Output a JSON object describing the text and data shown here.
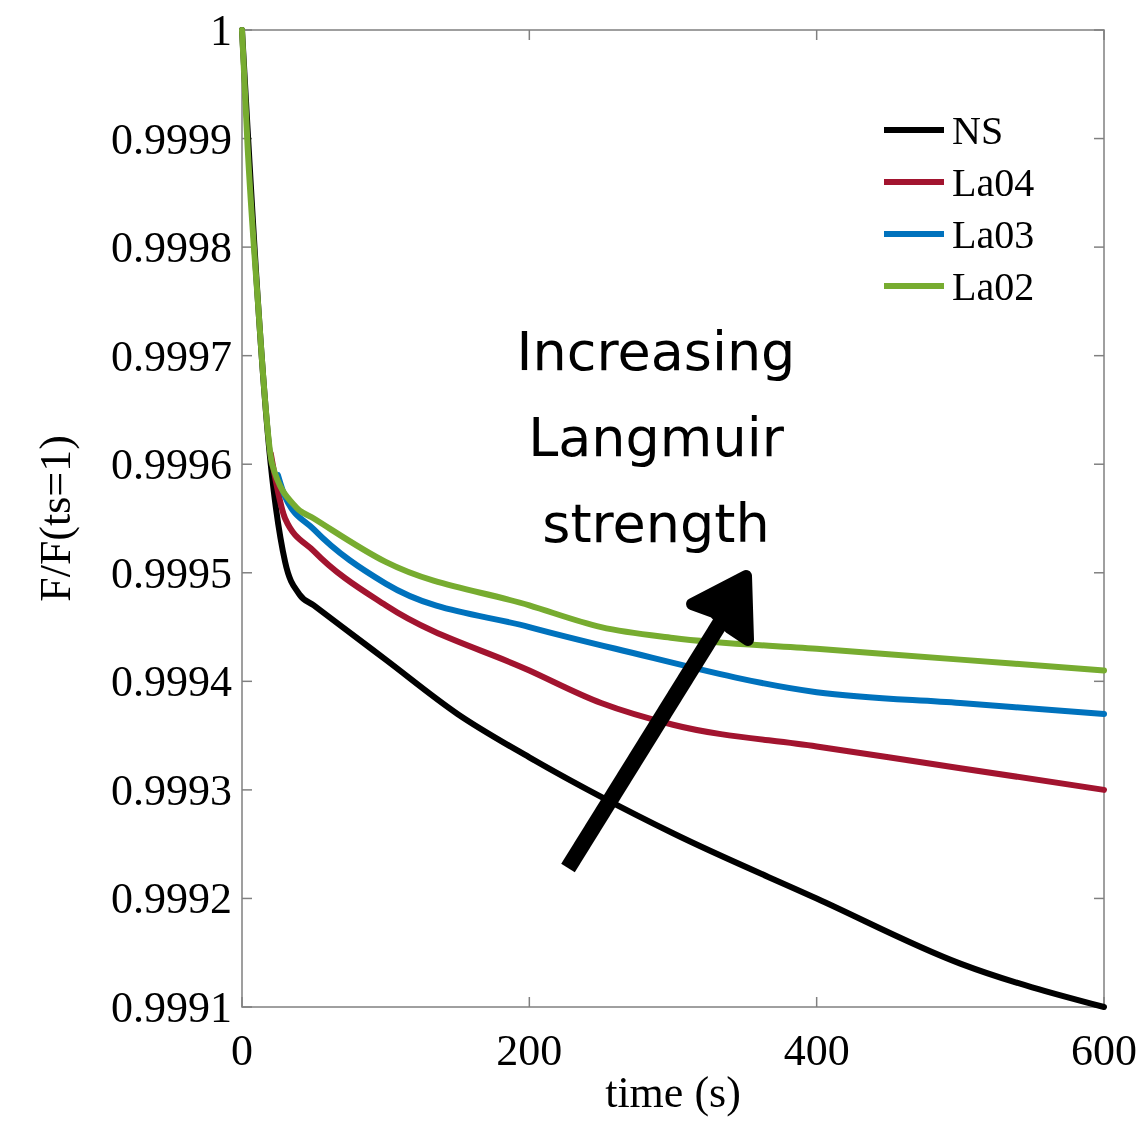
{
  "chart_data": {
    "type": "line",
    "xlabel": "time (s)",
    "ylabel": "F/F(ts=1)",
    "xlim": [
      0,
      600
    ],
    "ylim": [
      0.9991,
      1
    ],
    "xticks": [
      0,
      200,
      400,
      600
    ],
    "yticks": [
      0.9991,
      0.9992,
      0.9993,
      0.9994,
      0.9995,
      0.9996,
      0.9997,
      0.9998,
      0.9999,
      1
    ],
    "grid": false,
    "legend": "top right",
    "line_style": "solid",
    "marker": "none",
    "annotations": [
      "Increasing Langmuir strength"
    ],
    "series": [
      {
        "name": "NS",
        "color": "#000000",
        "x": [
          0,
          4,
          10,
          20,
          30,
          40,
          50,
          70,
          100,
          150,
          200,
          300,
          400,
          500,
          600
        ],
        "values": [
          1,
          null,
          null,
          0.9996,
          0.99951,
          0.99948,
          0.99947,
          0.99945,
          0.99942,
          0.99937,
          0.99933,
          0.99926,
          0.9992,
          0.99914,
          0.9991
        ]
      },
      {
        "name": "La04",
        "color": "#a2142f",
        "x": [
          20,
          30,
          50,
          100,
          200,
          250,
          300,
          400,
          500,
          600
        ],
        "values": [
          0.99961,
          0.99955,
          0.99952,
          0.99947,
          0.99941,
          0.99938,
          0.99936,
          0.99934,
          0.99932,
          0.9993
        ]
      },
      {
        "name": "La03",
        "color": "#0072bd",
        "x": [
          25,
          30,
          50,
          100,
          200,
          260,
          400,
          500,
          600
        ],
        "values": [
          0.99959,
          0.99957,
          0.99954,
          0.99949,
          0.99945,
          0.99943,
          0.99939,
          0.99938,
          0.99937
        ]
      },
      {
        "name": "La02",
        "color": "#77ac30",
        "x": [
          0,
          4,
          10.5,
          21,
          38,
          50,
          100,
          200,
          250,
          300,
          400,
          500,
          600
        ],
        "values": [
          1,
          0.99989,
          0.99976,
          0.9996,
          0.99956,
          0.99955,
          0.99951,
          0.99947,
          0.99945,
          0.99944,
          0.99943,
          0.99942,
          0.99941
        ]
      }
    ]
  }
}
